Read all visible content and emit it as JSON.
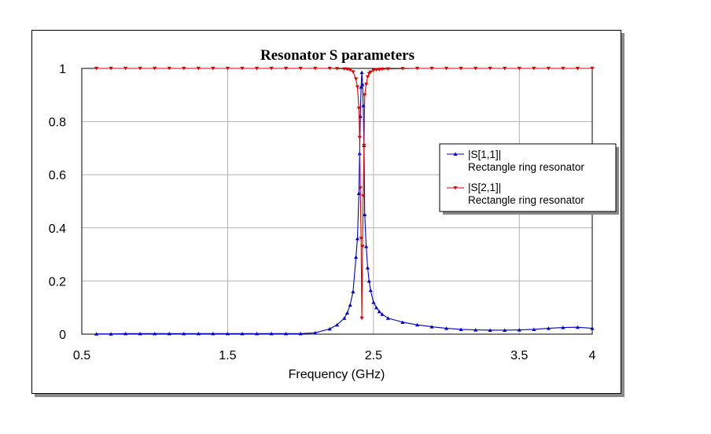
{
  "chart_data": {
    "type": "line",
    "title": "Resonator S parameters",
    "xlabel": "Frequency (GHz)",
    "ylabel": "",
    "xlim": [
      0.5,
      4
    ],
    "ylim": [
      0,
      1
    ],
    "xticks": [
      {
        "value": 0.5,
        "label": "0.5"
      },
      {
        "value": 1.5,
        "label": "1.5"
      },
      {
        "value": 2.5,
        "label": "2.5"
      },
      {
        "value": 3.5,
        "label": "3.5"
      },
      {
        "value": 4,
        "label": "4"
      }
    ],
    "yticks": [
      {
        "value": 0,
        "label": "0"
      },
      {
        "value": 0.2,
        "label": "0.2"
      },
      {
        "value": 0.4,
        "label": "0.4"
      },
      {
        "value": 0.6,
        "label": "0.6"
      },
      {
        "value": 0.8,
        "label": "0.8"
      },
      {
        "value": 1,
        "label": "1"
      }
    ],
    "grid": true,
    "legend_position": "right",
    "series": [
      {
        "name": "|S[1,1]|",
        "subtitle": "Rectangle ring resonator",
        "color": "#0000cc",
        "marker": "triangle-up",
        "x": [
          0.6,
          0.7,
          0.8,
          0.9,
          1.0,
          1.1,
          1.2,
          1.3,
          1.4,
          1.5,
          1.6,
          1.7,
          1.8,
          1.9,
          2.0,
          2.1,
          2.2,
          2.25,
          2.3,
          2.32,
          2.34,
          2.36,
          2.38,
          2.39,
          2.4,
          2.405,
          2.41,
          2.415,
          2.42,
          2.425,
          2.43,
          2.435,
          2.44,
          2.45,
          2.46,
          2.47,
          2.48,
          2.5,
          2.52,
          2.54,
          2.56,
          2.6,
          2.7,
          2.8,
          2.9,
          3.0,
          3.1,
          3.2,
          3.3,
          3.4,
          3.5,
          3.6,
          3.7,
          3.8,
          3.9,
          4.0
        ],
        "y": [
          0.001,
          0.001,
          0.002,
          0.002,
          0.002,
          0.002,
          0.002,
          0.002,
          0.002,
          0.002,
          0.002,
          0.002,
          0.002,
          0.002,
          0.002,
          0.005,
          0.02,
          0.035,
          0.06,
          0.08,
          0.11,
          0.16,
          0.29,
          0.36,
          0.53,
          0.68,
          0.82,
          0.93,
          0.985,
          0.94,
          0.86,
          0.71,
          0.45,
          0.33,
          0.25,
          0.2,
          0.165,
          0.12,
          0.1,
          0.085,
          0.075,
          0.06,
          0.045,
          0.035,
          0.028,
          0.022,
          0.018,
          0.016,
          0.015,
          0.015,
          0.016,
          0.018,
          0.022,
          0.025,
          0.026,
          0.022
        ]
      },
      {
        "name": "|S[2,1]|",
        "subtitle": "Rectangle ring resonator",
        "color": "#e00000",
        "marker": "triangle-down",
        "x": [
          0.6,
          0.7,
          0.8,
          0.9,
          1.0,
          1.1,
          1.2,
          1.3,
          1.4,
          1.5,
          1.6,
          1.7,
          1.8,
          1.9,
          2.0,
          2.1,
          2.2,
          2.25,
          2.3,
          2.32,
          2.34,
          2.36,
          2.38,
          2.39,
          2.4,
          2.405,
          2.41,
          2.415,
          2.42,
          2.425,
          2.43,
          2.435,
          2.44,
          2.45,
          2.46,
          2.47,
          2.48,
          2.5,
          2.52,
          2.54,
          2.56,
          2.6,
          2.7,
          2.8,
          2.9,
          3.0,
          3.1,
          3.2,
          3.3,
          3.4,
          3.5,
          3.6,
          3.7,
          3.8,
          3.9,
          4.0
        ],
        "y": [
          1.0,
          1.0,
          1.0,
          1.0,
          1.0,
          1.0,
          1.0,
          1.0,
          1.0,
          1.0,
          1.0,
          1.0,
          1.0,
          1.0,
          1.0,
          1.0,
          1.0,
          0.999,
          0.998,
          0.997,
          0.994,
          0.987,
          0.96,
          0.93,
          0.85,
          0.74,
          0.55,
          0.36,
          0.06,
          0.33,
          0.52,
          0.71,
          0.9,
          0.94,
          0.968,
          0.98,
          0.986,
          0.993,
          0.995,
          0.996,
          0.997,
          0.998,
          0.999,
          1.0,
          1.0,
          1.0,
          1.0,
          1.0,
          1.0,
          1.0,
          1.0,
          1.0,
          1.0,
          1.0,
          1.0,
          1.0
        ]
      }
    ]
  }
}
